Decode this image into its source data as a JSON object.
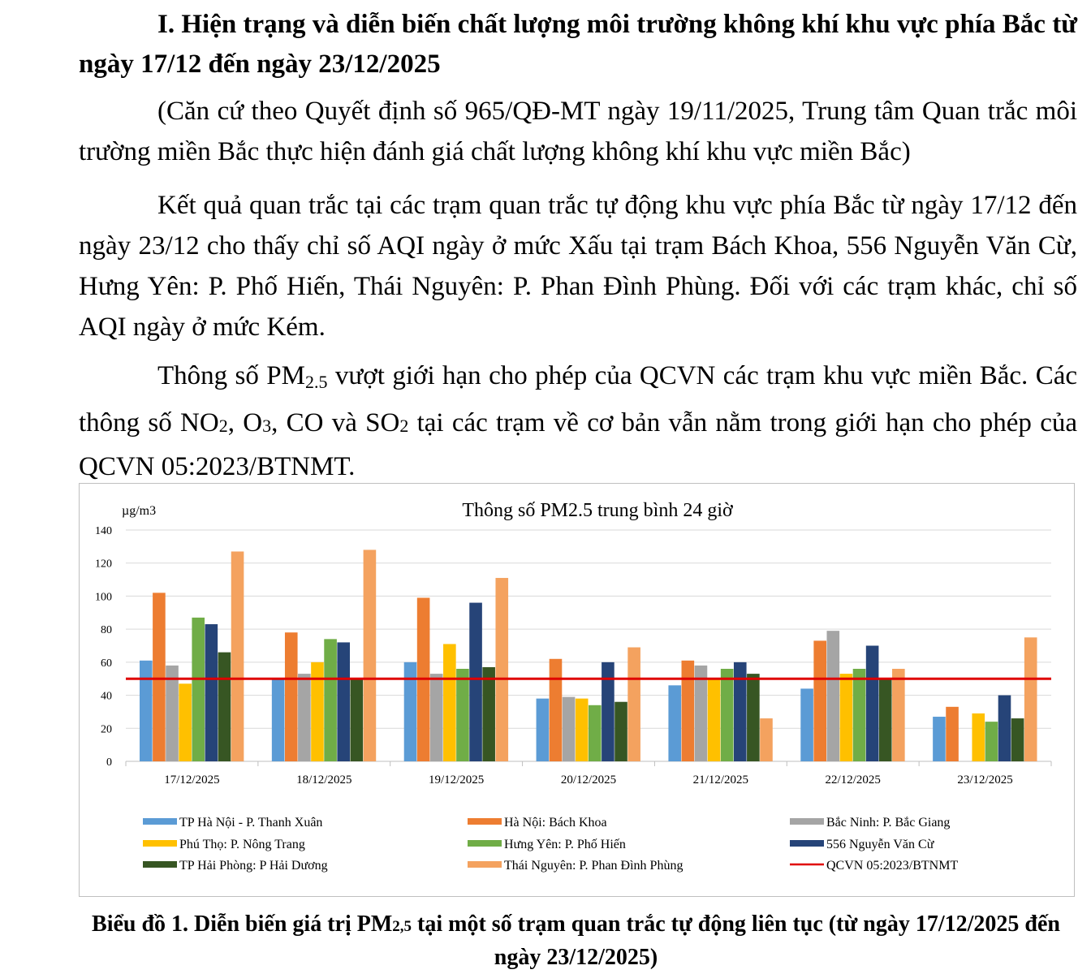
{
  "heading": {
    "text": "I. Hiện trạng và diễn biến chất lượng môi trường không khí khu vực phía Bắc từ ngày 17/12 đến ngày 23/12/2025"
  },
  "paragraphs": {
    "p1": "(Căn cứ theo Quyết định số 965/QĐ-MT ngày 19/11/2025, Trung  tâm Quan trắc môi trường miền Bắc thực hiện đánh giá chất lượng không khí khu vực miền Bắc)",
    "p2": "Kết quả quan trắc tại các trạm quan trắc tự động khu vực phía Bắc từ ngày 17/12 đến ngày 23/12 cho thấy chỉ số AQI ngày ở mức Xấu tại trạm Bách Khoa, 556 Nguyễn Văn Cừ, Hưng Yên: P. Phố Hiến, Thái Nguyên: P. Phan Đình Phùng. Đối với các trạm khác, chỉ số AQI ngày ở mức Kém.",
    "p3": {
      "a": "Thông số PM",
      "a_sub": "2.5",
      "b": " vượt giới hạn cho phép của QCVN các trạm khu vực miền Bắc. Các thông số NO",
      "b_sub": "2",
      "c": ", O",
      "c_sub": "3",
      "d": ", CO và SO",
      "d_sub": "2",
      "e": " tại các trạm về cơ bản vẫn nằm trong giới hạn cho phép của QCVN 05:2023/BTNMT."
    }
  },
  "chart_data": {
    "type": "bar",
    "title": "Thông số PM2.5 trung bình 24 giờ",
    "ylabel": "µg/m3",
    "xlabel": "",
    "ylim": [
      0,
      140
    ],
    "yticks": [
      0,
      20,
      40,
      60,
      80,
      100,
      120,
      140
    ],
    "grid": true,
    "legend_placement": "bottom",
    "categories": [
      "17/12/2025",
      "18/12/2025",
      "19/12/2025",
      "20/12/2025",
      "21/12/2025",
      "22/12/2025",
      "23/12/2025"
    ],
    "series": [
      {
        "name": "TP Hà Nội - P. Thanh Xuân",
        "color": "#5b9bd5",
        "values": [
          61,
          50,
          60,
          38,
          46,
          44,
          27
        ]
      },
      {
        "name": "Hà Nội: Bách Khoa",
        "color": "#ed7d31",
        "values": [
          102,
          78,
          99,
          62,
          61,
          73,
          33
        ]
      },
      {
        "name": "Bắc Ninh: P. Bắc Giang",
        "color": "#a5a5a5",
        "values": [
          58,
          53,
          53,
          39,
          58,
          79,
          null
        ]
      },
      {
        "name": "Phú Thọ: P. Nông Trang",
        "color": "#ffc000",
        "values": [
          47,
          60,
          71,
          38,
          50,
          53,
          29
        ]
      },
      {
        "name": "Hưng Yên: P. Phố Hiến",
        "color": "#70ad47",
        "values": [
          87,
          74,
          56,
          34,
          56,
          56,
          24
        ]
      },
      {
        "name": "556 Nguyễn Văn Cừ",
        "color": "#264478",
        "values": [
          83,
          72,
          96,
          60,
          60,
          70,
          40
        ]
      },
      {
        "name": "TP Hải Phòng: P Hải Dương",
        "color": "#375623",
        "values": [
          66,
          50,
          57,
          36,
          53,
          50,
          26
        ]
      },
      {
        "name": "Thái Nguyên: P. Phan Đình Phùng",
        "color": "#f4a25f",
        "values": [
          127,
          128,
          111,
          69,
          26,
          56,
          75
        ]
      }
    ],
    "reference_line": {
      "name": "QCVN 05:2023/BTNMT",
      "value": 50,
      "color": "#e00000"
    }
  },
  "caption": {
    "a": "Biểu đồ 1. Diễn biến giá trị PM",
    "a_sub": "2,5",
    "b": " tại một số trạm quan trắc tự động liên tục (từ ngày 17/12/2025 đến ngày 23/12/2025)"
  }
}
